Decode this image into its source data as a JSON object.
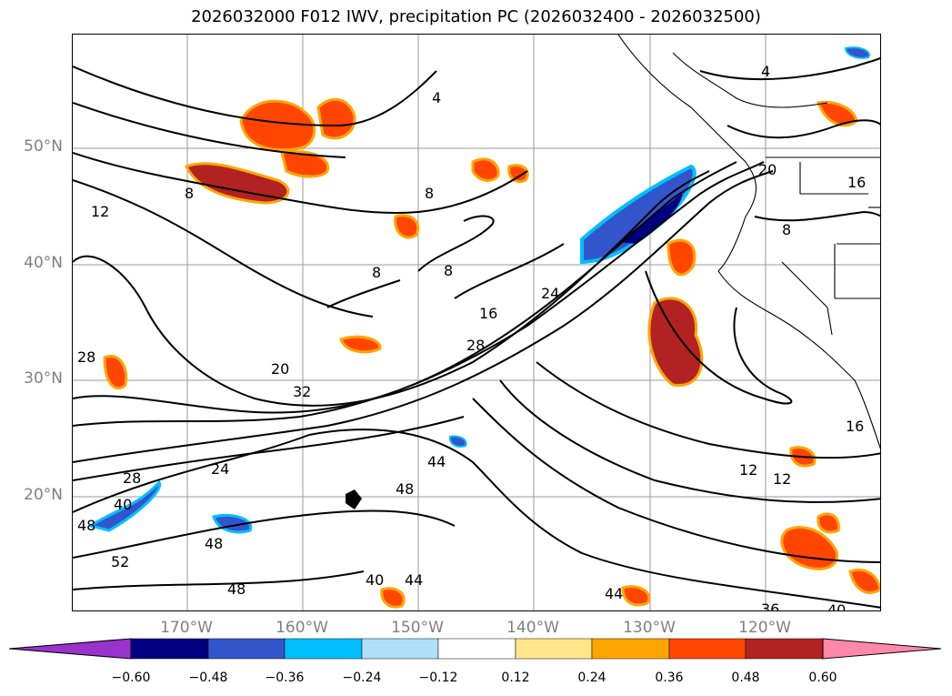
{
  "title": "2026032000 F012 IWV, precipitation PC (2026032400 - 2026032500)",
  "axes": {
    "lat_labels": [
      "50°N",
      "40°N",
      "30°N",
      "20°N"
    ],
    "lon_labels": [
      "170°W",
      "160°W",
      "150°W",
      "140°W",
      "130°W",
      "120°W"
    ]
  },
  "contour_labels": [
    "4",
    "4",
    "8",
    "8",
    "8",
    "8",
    "8",
    "12",
    "12",
    "12",
    "16",
    "16",
    "16",
    "20",
    "20",
    "24",
    "24",
    "28",
    "28",
    "28",
    "32",
    "36",
    "40",
    "40",
    "40",
    "44",
    "44",
    "44",
    "48",
    "48",
    "48",
    "48",
    "52"
  ],
  "colorbar": {
    "tick_labels": [
      "−0.60",
      "−0.48",
      "−0.36",
      "−0.24",
      "−0.12",
      "0.12",
      "0.24",
      "0.36",
      "0.48",
      "0.60"
    ],
    "colors": [
      "#9933cc",
      "#000080",
      "#3355cc",
      "#00bfff",
      "#b0e0f8",
      "#ffffff",
      "#ffe68a",
      "#ffa500",
      "#ff4500",
      "#b22222",
      "#ff88aa"
    ]
  }
}
